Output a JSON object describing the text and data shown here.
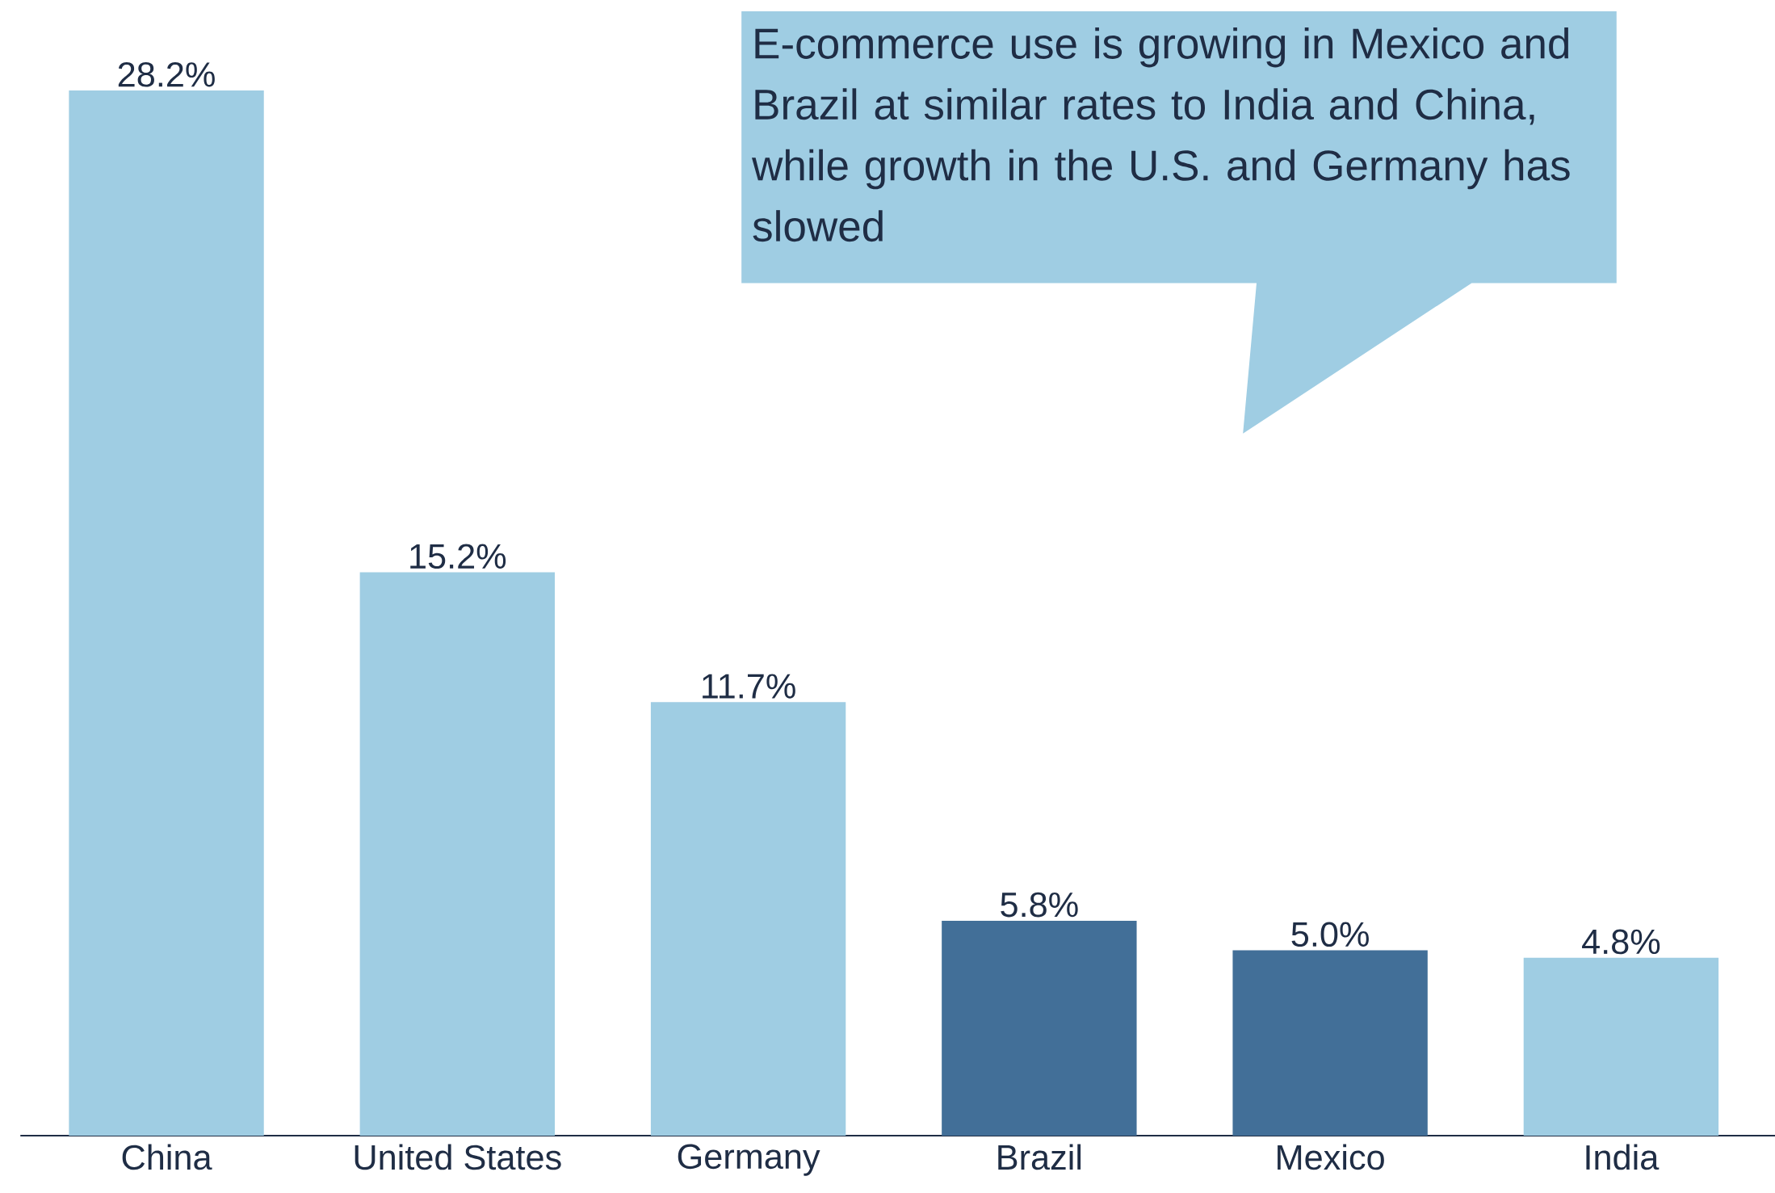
{
  "chart_data": {
    "type": "bar",
    "categories": [
      "China",
      "United States",
      "Germany",
      "Brazil",
      "Mexico",
      "India"
    ],
    "values": [
      28.2,
      15.2,
      11.7,
      5.8,
      5.0,
      4.8
    ],
    "value_labels": [
      "28.2%",
      "15.2%",
      "11.7%",
      "5.8%",
      "5.0%",
      "4.8%"
    ],
    "colors": [
      "#9fcde3",
      "#9fcde3",
      "#9fcde3",
      "#426f98",
      "#426f98",
      "#9fcde3"
    ],
    "annotations": [
      "E-commerce use is growing in Mexico and Brazil at similar rates to India and China, while growth in the U.S. and Germany has slowed"
    ]
  }
}
